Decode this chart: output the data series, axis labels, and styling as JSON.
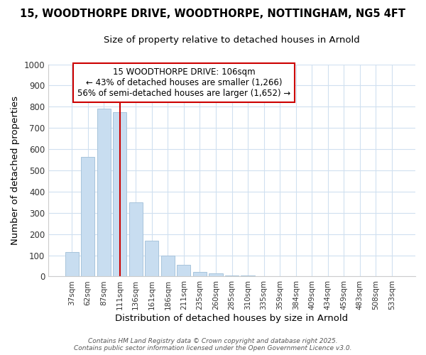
{
  "title_line1": "15, WOODTHORPE DRIVE, WOODTHORPE, NOTTINGHAM, NG5 4FT",
  "title_line2": "Size of property relative to detached houses in Arnold",
  "xlabel": "Distribution of detached houses by size in Arnold",
  "ylabel": "Number of detached properties",
  "bar_color": "#c8ddf0",
  "bar_edge_color": "#a8c4dc",
  "background_color": "#ffffff",
  "grid_color": "#d0e0f0",
  "categories": [
    "37sqm",
    "62sqm",
    "87sqm",
    "111sqm",
    "136sqm",
    "161sqm",
    "186sqm",
    "211sqm",
    "235sqm",
    "260sqm",
    "285sqm",
    "310sqm",
    "335sqm",
    "359sqm",
    "384sqm",
    "409sqm",
    "434sqm",
    "459sqm",
    "483sqm",
    "508sqm",
    "533sqm"
  ],
  "values": [
    115,
    565,
    790,
    775,
    350,
    168,
    100,
    55,
    20,
    15,
    5,
    5,
    2,
    0,
    1,
    0,
    0,
    0,
    0,
    0,
    0
  ],
  "red_line_x": 3.0,
  "property_label": "15 WOODTHORPE DRIVE: 106sqm",
  "annotation_line2": "← 43% of detached houses are smaller (1,266)",
  "annotation_line3": "56% of semi-detached houses are larger (1,652) →",
  "red_line_color": "#cc0000",
  "ylim": [
    0,
    1000
  ],
  "yticks": [
    0,
    100,
    200,
    300,
    400,
    500,
    600,
    700,
    800,
    900,
    1000
  ],
  "footer_line1": "Contains HM Land Registry data © Crown copyright and database right 2025.",
  "footer_line2": "Contains public sector information licensed under the Open Government Licence v3.0.",
  "title_fontsize": 10.5,
  "subtitle_fontsize": 9.5
}
